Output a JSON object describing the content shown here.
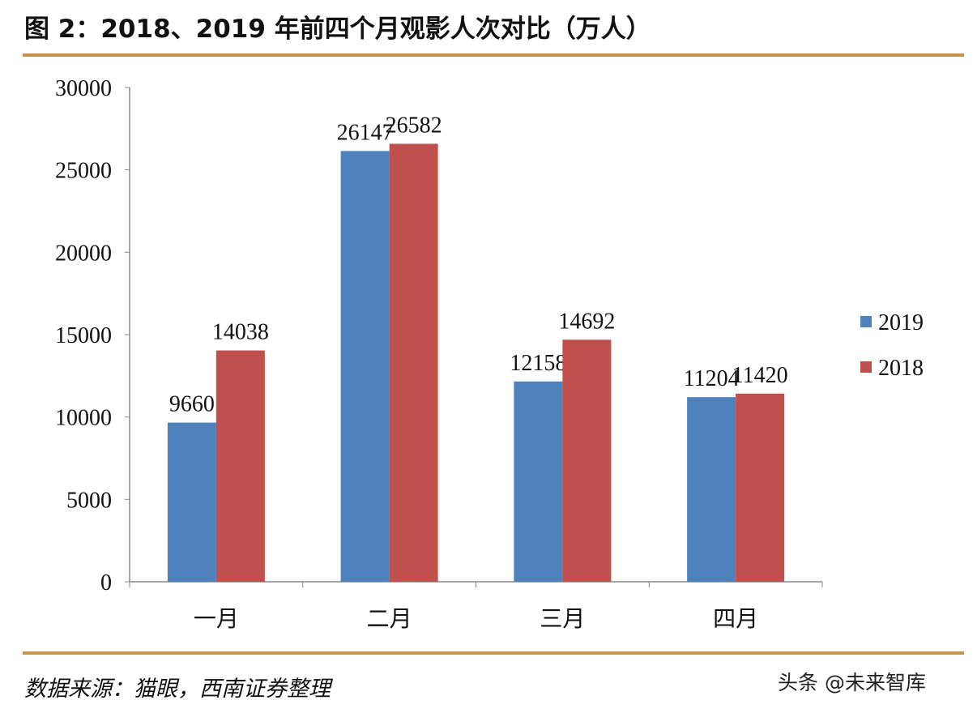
{
  "title": "图 2：2018、2019 年前四个月观影人次对比（万人）",
  "source": "数据来源：猫眼，西南证券整理",
  "watermark": "头条 @未来智库",
  "chart_data": {
    "type": "bar",
    "title": "图 2：2018、2019 年前四个月观影人次对比（万人）",
    "categories": [
      "一月",
      "二月",
      "三月",
      "四月"
    ],
    "series": [
      {
        "name": "2019",
        "color": "#4F81BD",
        "values": [
          9660,
          26147,
          12158,
          11204
        ]
      },
      {
        "name": "2018",
        "color": "#C0504D",
        "values": [
          14038,
          26582,
          14692,
          11420
        ]
      }
    ],
    "ylim": [
      0,
      30000
    ],
    "yticks": [
      0,
      5000,
      10000,
      15000,
      20000,
      25000,
      30000
    ],
    "grid": false,
    "legend": "right",
    "data_labels": true
  }
}
